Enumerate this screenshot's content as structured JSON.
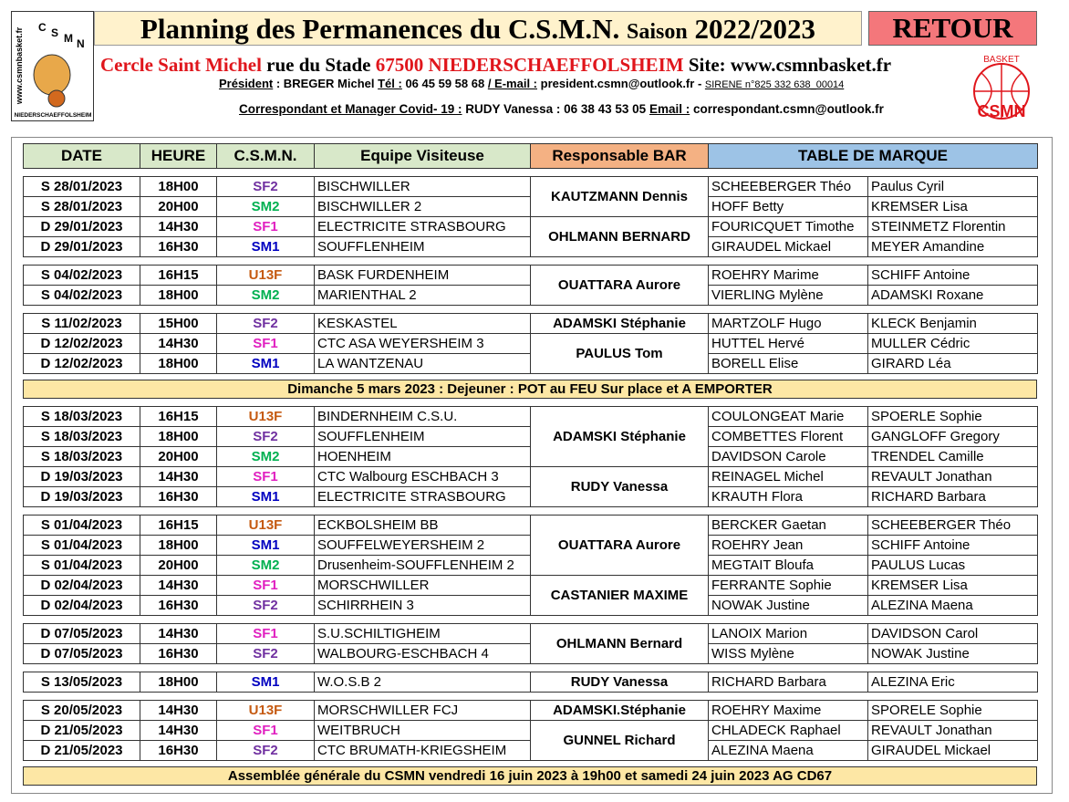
{
  "header": {
    "logo_left": {
      "site": "www.csmnbasket.fr",
      "letters": [
        "C",
        "S",
        "M",
        "N"
      ],
      "town": "NIEDERSCHAEFFOLSHEIM"
    },
    "title": "Planning des Permanences du C.S.M.N.",
    "season_label": "Saison",
    "season": "2022/2023",
    "button": "RETOUR",
    "club": {
      "name": "Cercle Saint Michel",
      "street": "rue du Stade",
      "city": "67500 NIEDERSCHAEFFOLSHEIM",
      "site": "Site: www.csmnbasket.fr"
    },
    "president": {
      "label": "Président",
      "name": " : BREGER Michel ",
      "tel_label": "Tél :",
      "tel": " 06 45 59 58 68 ",
      "mail_label": "/ E-mail :",
      "mail": " president.csmn@outlook.fr ",
      "sep": " - ",
      "sirene": "SIRENE n°825 332 638_00014"
    },
    "correspondent": {
      "label": "Correspondant et Manager Covid- 19 :",
      "text": " RUDY Vanessa : 06 38 43 53 05 ",
      "mail_label": "Email :",
      "mail": " correspondant.csmn@outlook.fr"
    },
    "logo_right": {
      "top": "BASKET",
      "bottom": "CSMN"
    }
  },
  "table": {
    "columns": [
      "DATE",
      "HEURE",
      "C.S.M.N.",
      "Equipe Visiteuse",
      "Responsable   BAR",
      "TABLE DE MARQUE"
    ],
    "sections": [
      {
        "slots": [
          {
            "bar": "KAUTZMANN Dennis",
            "rows": [
              [
                "S 28/01/2023",
                "18H00",
                "SF2",
                "BISCHWILLER",
                "SCHEEBERGER Théo",
                "Paulus Cyril"
              ],
              [
                "S 28/01/2023",
                "20H00",
                "SM2",
                "BISCHWILLER 2",
                "HOFF Betty",
                "KREMSER Lisa"
              ]
            ]
          },
          {
            "bar": "OHLMANN BERNARD",
            "rows": [
              [
                "D 29/01/2023",
                "14H30",
                "SF1",
                "ELECTRICITE STRASBOURG",
                "FOURICQUET Timothe",
                "STEINMETZ Florentin"
              ],
              [
                "D 29/01/2023",
                "16H30",
                "SM1",
                "SOUFFLENHEIM",
                "GIRAUDEL Mickael",
                "MEYER Amandine"
              ]
            ]
          }
        ]
      },
      {
        "slots": [
          {
            "bar": "OUATTARA Aurore",
            "rows": [
              [
                "S 04/02/2023",
                "16H15",
                "U13F",
                "BASK FURDENHEIM",
                "ROEHRY Marime",
                "SCHIFF Antoine"
              ],
              [
                "S 04/02/2023",
                "18H00",
                "SM2",
                "MARIENTHAL 2",
                "VIERLING Mylène",
                "ADAMSKI Roxane"
              ]
            ]
          }
        ]
      },
      {
        "slots": [
          {
            "bar": "ADAMSKI Stéphanie",
            "rows": [
              [
                "S 11/02/2023",
                "15H00",
                "SF2",
                "KESKASTEL",
                "MARTZOLF Hugo",
                "KLECK Benjamin"
              ]
            ]
          },
          {
            "bar": "PAULUS Tom",
            "rows": [
              [
                "D 12/02/2023",
                "14H30",
                "SF1",
                "CTC ASA WEYERSHEIM 3",
                "HUTTEL Hervé",
                "MULLER Cédric"
              ],
              [
                "D 12/02/2023",
                "18H00",
                "SM1",
                "LA WANTZENAU",
                "BORELL Elise",
                "GIRARD Léa"
              ]
            ]
          }
        ]
      },
      {
        "banner": "Dimanche 5 mars 2023 : Dejeuner : POT au FEU Sur place et A EMPORTER"
      },
      {
        "slots": [
          {
            "bar": "ADAMSKI Stéphanie",
            "rows": [
              [
                "S 18/03/2023",
                "16H15",
                "U13F",
                "BINDERNHEIM C.S.U.",
                "COULONGEAT Marie",
                "SPOERLE Sophie"
              ],
              [
                "S 18/03/2023",
                "18H00",
                "SF2",
                "SOUFFLENHEIM",
                "COMBETTES Florent",
                "GANGLOFF Gregory"
              ],
              [
                "S 18/03/2023",
                "20H00",
                "SM2",
                "HOENHEIM",
                "DAVIDSON Carole",
                "TRENDEL Camille"
              ]
            ]
          },
          {
            "bar": "RUDY Vanessa",
            "rows": [
              [
                "D 19/03/2023",
                "14H30",
                "SF1",
                "CTC Walbourg ESCHBACH 3",
                "REINAGEL Michel",
                "REVAULT Jonathan"
              ],
              [
                "D 19/03/2023",
                "16H30",
                "SM1",
                "ELECTRICITE STRASBOURG",
                "KRAUTH Flora",
                "RICHARD Barbara"
              ]
            ]
          }
        ]
      },
      {
        "slots": [
          {
            "bar": "OUATTARA Aurore",
            "rows": [
              [
                "S 01/04/2023",
                "16H15",
                "U13F",
                "ECKBOLSHEIM BB",
                "BERCKER Gaetan",
                "SCHEEBERGER Théo"
              ],
              [
                "S 01/04/2023",
                "18H00",
                "SM1",
                "SOUFFELWEYERSHEIM 2",
                "ROEHRY Jean",
                "SCHIFF Antoine"
              ],
              [
                "S 01/04/2023",
                "20H00",
                "SM2",
                "Drusenheim-SOUFFLENHEIM 2",
                "MEGTAIT Bloufa",
                "PAULUS Lucas"
              ]
            ]
          },
          {
            "bar": "CASTANIER MAXIME",
            "rows": [
              [
                "D 02/04/2023",
                "14H30",
                "SF1",
                "MORSCHWILLER",
                "FERRANTE Sophie",
                "KREMSER Lisa"
              ],
              [
                "D 02/04/2023",
                "16H30",
                "SF2",
                "SCHIRRHEIN 3",
                "NOWAK Justine",
                "ALEZINA Maena"
              ]
            ]
          }
        ]
      },
      {
        "slots": [
          {
            "bar": "OHLMANN Bernard",
            "rows": [
              [
                "D 07/05/2023",
                "14H30",
                "SF1",
                "S.U.SCHILTIGHEIM",
                "LANOIX Marion",
                "DAVIDSON Carol"
              ],
              [
                "D 07/05/2023",
                "16H30",
                "SF2",
                "WALBOURG-ESCHBACH 4",
                "WISS Mylène",
                "NOWAK Justine"
              ]
            ]
          }
        ]
      },
      {
        "slots": [
          {
            "bar": "RUDY Vanessa",
            "rows": [
              [
                "S 13/05/2023",
                "18H00",
                "SM1",
                "W.O.S.B 2",
                "RICHARD Barbara",
                "ALEZINA Eric"
              ]
            ]
          }
        ]
      },
      {
        "slots": [
          {
            "bar": "ADAMSKI.Stéphanie",
            "rows": [
              [
                "S 20/05/2023",
                "14H30",
                "U13F",
                "MORSCHWILLER FCJ",
                "ROEHRY Maxime",
                "SPORELE Sophie"
              ]
            ]
          },
          {
            "bar": "GUNNEL Richard",
            "rows": [
              [
                "D 21/05/2023",
                "14H30",
                "SF1",
                "WEITBRUCH",
                "CHLADECK Raphael",
                "REVAULT Jonathan"
              ],
              [
                "D 21/05/2023",
                "16H30",
                "SF2",
                "CTC BRUMATH-KRIEGSHEIM",
                "ALEZINA Maena",
                "GIRAUDEL Mickael"
              ]
            ]
          }
        ]
      },
      {
        "banner": "Assemblée générale du CSMN vendredi 16 juin 2023 à 19h00  et samedi 24 juin 2023 AG CD67"
      }
    ]
  }
}
